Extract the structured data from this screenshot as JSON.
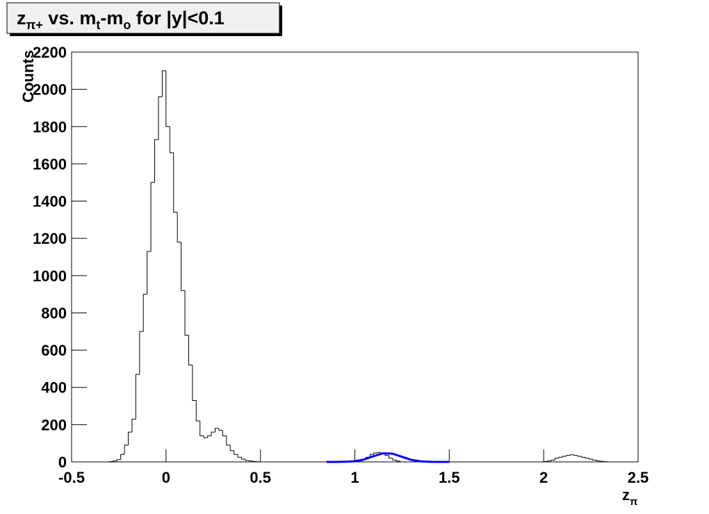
{
  "chart_data": {
    "type": "histogram",
    "title": [
      {
        "text": "z"
      },
      {
        "text": "π+",
        "sub": true
      },
      {
        "text": " vs. m"
      },
      {
        "text": "t",
        "sub": true
      },
      {
        "text": "-m"
      },
      {
        "text": "o",
        "sub": true
      },
      {
        "text": " for |y|<0.1"
      }
    ],
    "x_label": [
      {
        "text": "z"
      },
      {
        "text": "π",
        "sub": true
      }
    ],
    "y_label": "Counts",
    "color": "#000000",
    "xlim": [
      -0.5,
      2.5
    ],
    "ylim": [
      0,
      2200
    ],
    "xticks": [
      -0.5,
      0,
      0.5,
      1,
      1.5,
      2,
      2.5
    ],
    "yticks": [
      0,
      200,
      400,
      600,
      800,
      1000,
      1200,
      1400,
      1600,
      1800,
      2000,
      2200
    ],
    "bins": [
      -0.5,
      -0.48,
      -0.46,
      -0.44,
      -0.42,
      -0.4,
      -0.38,
      -0.36,
      -0.34,
      -0.32,
      -0.3,
      -0.28,
      -0.26,
      -0.24,
      -0.22,
      -0.2,
      -0.18,
      -0.16,
      -0.14,
      -0.12,
      -0.1,
      -0.08,
      -0.06,
      -0.04,
      -0.02,
      0,
      0.02,
      0.04,
      0.06,
      0.08,
      0.1,
      0.12,
      0.14,
      0.16,
      0.18,
      0.2,
      0.22,
      0.24,
      0.26,
      0.28,
      0.3,
      0.32,
      0.34,
      0.36,
      0.38,
      0.4,
      0.42,
      0.44,
      0.46,
      0.48,
      0.5,
      0.52,
      0.54,
      0.56,
      0.58,
      0.6,
      0.62,
      0.64,
      0.66,
      0.68,
      0.7,
      0.72,
      0.74,
      0.76,
      0.78,
      0.8,
      0.82,
      0.84,
      0.86,
      0.88,
      0.9,
      0.92,
      0.94,
      0.96,
      0.98,
      1,
      1.02,
      1.04,
      1.06,
      1.08,
      1.1,
      1.12,
      1.14,
      1.16,
      1.18,
      1.2,
      1.22,
      1.24,
      1.26,
      1.28,
      1.3,
      1.32,
      1.34,
      1.36,
      1.38,
      1.4,
      1.42,
      1.44,
      1.46,
      1.48,
      1.5,
      1.52,
      1.54,
      1.56,
      1.58,
      1.6,
      1.62,
      1.64,
      1.66,
      1.68,
      1.7,
      1.72,
      1.74,
      1.76,
      1.78,
      1.8,
      1.82,
      1.84,
      1.86,
      1.88,
      1.9,
      1.92,
      1.94,
      1.96,
      1.98,
      2,
      2.02,
      2.04,
      2.06,
      2.08,
      2.1,
      2.12,
      2.14,
      2.16,
      2.18,
      2.2,
      2.22,
      2.24,
      2.26,
      2.28,
      2.3,
      2.32,
      2.34,
      2.36,
      2.38,
      2.4,
      2.42,
      2.44,
      2.46,
      2.48,
      2.5
    ],
    "values": [
      0,
      0,
      0,
      0,
      0,
      0,
      0,
      0,
      0,
      0,
      2,
      5,
      12,
      40,
      90,
      160,
      230,
      470,
      700,
      900,
      1130,
      1500,
      1730,
      1960,
      2100,
      1800,
      1660,
      1340,
      1180,
      920,
      680,
      520,
      330,
      220,
      140,
      130,
      140,
      160,
      180,
      170,
      140,
      90,
      60,
      40,
      25,
      15,
      8,
      5,
      2,
      1,
      0,
      0,
      0,
      0,
      0,
      0,
      0,
      0,
      0,
      0,
      0,
      0,
      0,
      0,
      0,
      0,
      0,
      0,
      0,
      0,
      0,
      0,
      0,
      0,
      0,
      0,
      5,
      12,
      25,
      40,
      48,
      50,
      45,
      35,
      20,
      10,
      4,
      0,
      0,
      0,
      0,
      0,
      0,
      0,
      0,
      0,
      0,
      0,
      0,
      0,
      0,
      0,
      0,
      0,
      0,
      0,
      0,
      0,
      0,
      0,
      0,
      0,
      0,
      0,
      0,
      0,
      0,
      0,
      0,
      0,
      0,
      0,
      0,
      0,
      0,
      2,
      5,
      10,
      20,
      25,
      30,
      35,
      38,
      35,
      30,
      25,
      20,
      15,
      10,
      5,
      3,
      1,
      0,
      0,
      0,
      0,
      0,
      0,
      0,
      0
    ],
    "fit": {
      "color": "#0000ff",
      "x": [
        0.85,
        0.9,
        0.95,
        1,
        1.05,
        1.1,
        1.15,
        1.2,
        1.25,
        1.3,
        1.35,
        1.4,
        1.45,
        1.5
      ],
      "values": [
        0,
        0.1,
        0.7,
        3.7,
        13.3,
        31,
        46.3,
        44.3,
        27.2,
        10.7,
        2.7,
        0.4,
        0,
        0
      ]
    }
  }
}
